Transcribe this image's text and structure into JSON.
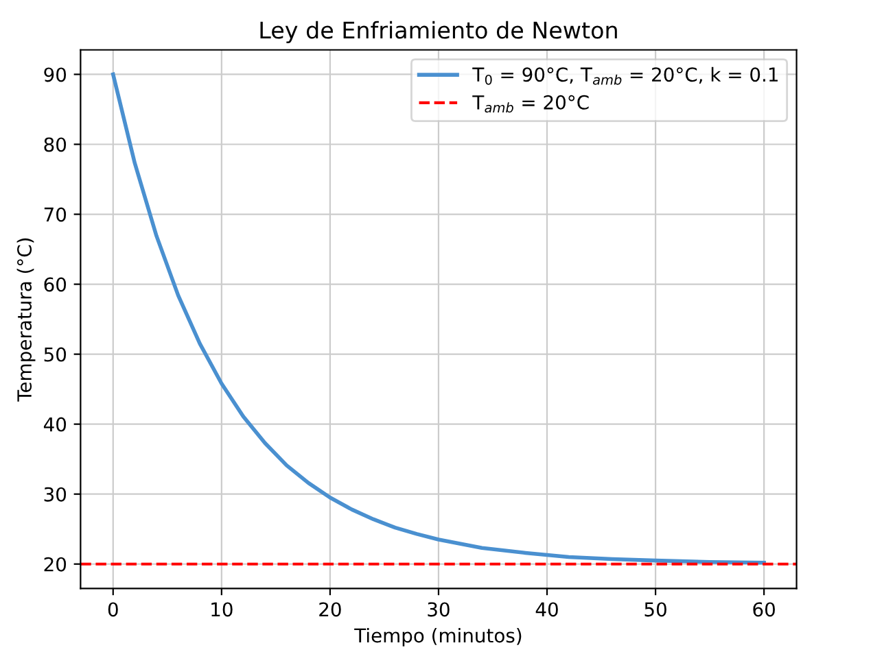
{
  "chart_data": {
    "type": "line",
    "title": "Ley de Enfriamiento de Newton",
    "xlabel": "Tiempo (minutos)",
    "ylabel": "Temperatura (°C)",
    "x": [
      0,
      2,
      4,
      6,
      8,
      10,
      12,
      14,
      16,
      18,
      20,
      22,
      24,
      26,
      28,
      30,
      34,
      38,
      42,
      46,
      50,
      55,
      60
    ],
    "series": [
      {
        "name": "T$_{0}$ = 90°C, T$_{amb}$ = 20°C, k = 0.1",
        "color": "#4a90d0",
        "values": [
          90,
          77.3,
          66.9,
          58.4,
          51.5,
          45.8,
          41.1,
          37.3,
          34.1,
          31.6,
          29.5,
          27.8,
          26.4,
          25.2,
          24.3,
          23.5,
          22.3,
          21.6,
          21.0,
          20.7,
          20.5,
          20.3,
          20.2
        ]
      }
    ],
    "ref_lines": [
      {
        "axis": "y",
        "value": 20,
        "label": "T$_{amb}$ = 20°C",
        "color": "#ff0000",
        "line_style": "dashed"
      }
    ],
    "xlim": [
      -3,
      63
    ],
    "ylim": [
      16.5,
      93.5
    ],
    "xticks": [
      0,
      10,
      20,
      30,
      40,
      50,
      60
    ],
    "yticks": [
      20,
      30,
      40,
      50,
      60,
      70,
      80,
      90
    ],
    "grid": true,
    "legend": "top right",
    "marker": "none",
    "line_style": "solid"
  }
}
